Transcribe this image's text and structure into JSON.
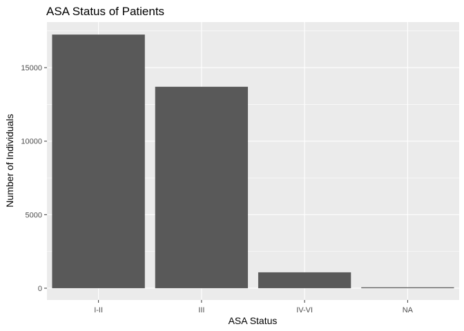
{
  "chart_data": {
    "type": "bar",
    "title": "ASA Status of Patients",
    "xlabel": "ASA Status",
    "ylabel": "Number of Individuals",
    "categories": [
      "I-II",
      "III",
      "IV-VI",
      "NA"
    ],
    "values": [
      17250,
      13700,
      1080,
      60
    ],
    "ylim": [
      -800,
      18100
    ],
    "yticks": [
      0,
      5000,
      10000,
      15000
    ],
    "ytick_labels": [
      "0",
      "5000",
      "10000",
      "15000"
    ],
    "grid": true,
    "bar_color": "#595959",
    "panel_color": "#ebebeb",
    "grid_color": "#ffffff"
  }
}
